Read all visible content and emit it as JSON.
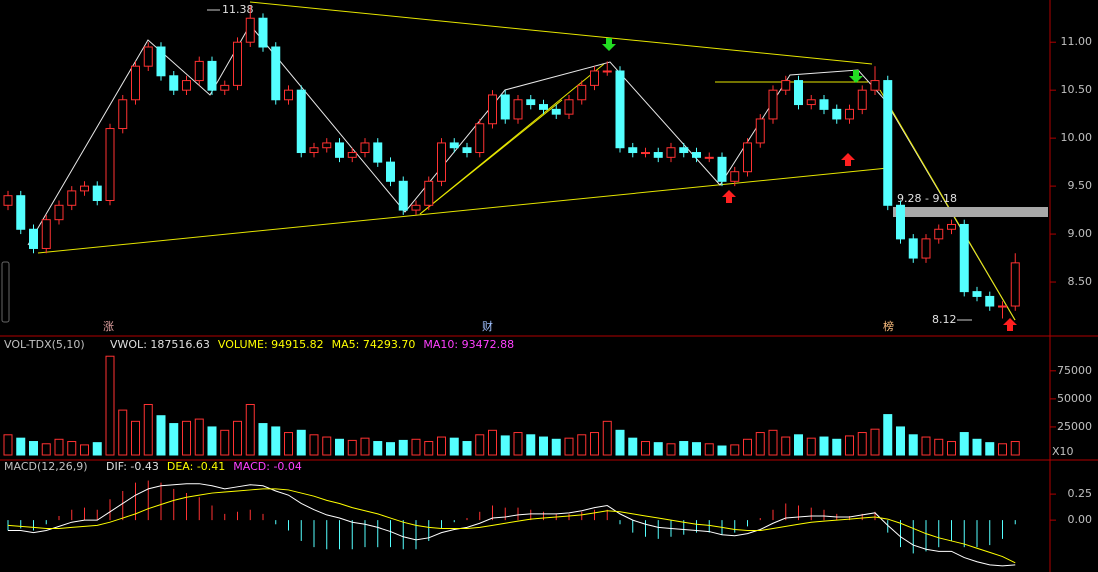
{
  "chart_data": [
    {
      "type": "candlestick",
      "ylim": [
        8.0,
        11.44
      ],
      "yticks": [
        {
          "value": 8.5,
          "label": "8.50"
        },
        {
          "value": 9,
          "label": "9.00"
        },
        {
          "value": 9.5,
          "label": "9.50"
        },
        {
          "value": 10,
          "label": "10.00"
        },
        {
          "value": 10.5,
          "label": "10.50"
        },
        {
          "value": 11,
          "label": "11.00"
        }
      ],
      "up_color": "#ff3232",
      "down_color": "#54ffff",
      "open": [
        9.3,
        9.4,
        9.05,
        8.85,
        9.15,
        9.3,
        9.45,
        9.5,
        9.35,
        10.1,
        10.4,
        10.75,
        10.95,
        10.65,
        10.5,
        10.6,
        10.8,
        10.5,
        10.55,
        11.0,
        11.25,
        10.95,
        10.4,
        10.5,
        9.85,
        9.9,
        9.95,
        9.8,
        9.85,
        9.95,
        9.75,
        9.55,
        9.25,
        9.3,
        9.55,
        9.95,
        9.9,
        9.85,
        10.15,
        10.45,
        10.2,
        10.4,
        10.35,
        10.3,
        10.25,
        10.4,
        10.55,
        10.7,
        10.7,
        9.9,
        9.85,
        9.85,
        9.8,
        9.9,
        9.85,
        9.8,
        9.8,
        9.55,
        9.65,
        9.95,
        10.2,
        10.5,
        10.6,
        10.35,
        10.4,
        10.3,
        10.2,
        10.3,
        10.5,
        10.6,
        9.3,
        8.95,
        8.75,
        8.95,
        9.05,
        9.1,
        8.4,
        8.35,
        8.25,
        8.25
      ],
      "high": [
        9.45,
        9.45,
        9.1,
        9.2,
        9.35,
        9.5,
        9.55,
        9.55,
        10.15,
        10.45,
        10.8,
        11.0,
        11.0,
        10.7,
        10.65,
        10.85,
        10.85,
        10.6,
        11.05,
        11.38,
        11.3,
        11.0,
        10.55,
        10.55,
        9.95,
        10.0,
        10.0,
        9.9,
        10.0,
        10.0,
        9.8,
        9.6,
        9.35,
        9.6,
        10.0,
        10.0,
        9.95,
        10.2,
        10.5,
        10.5,
        10.45,
        10.45,
        10.4,
        10.35,
        10.45,
        10.6,
        10.75,
        10.8,
        10.75,
        9.95,
        9.9,
        9.9,
        9.95,
        9.95,
        9.9,
        9.85,
        9.85,
        9.7,
        10.0,
        10.25,
        10.55,
        10.65,
        10.65,
        10.45,
        10.45,
        10.35,
        10.35,
        10.55,
        10.75,
        10.65,
        9.35,
        9.0,
        9.0,
        9.1,
        9.15,
        9.15,
        8.45,
        8.4,
        8.3,
        8.8
      ],
      "low": [
        9.25,
        9.0,
        8.8,
        8.8,
        9.1,
        9.25,
        9.4,
        9.3,
        9.3,
        10.05,
        10.35,
        10.7,
        10.6,
        10.45,
        10.45,
        10.55,
        10.45,
        10.45,
        10.5,
        10.95,
        10.9,
        10.35,
        10.35,
        9.8,
        9.8,
        9.85,
        9.75,
        9.75,
        9.8,
        9.7,
        9.5,
        9.2,
        9.2,
        9.25,
        9.5,
        9.85,
        9.8,
        9.8,
        10.1,
        10.15,
        10.15,
        10.3,
        10.25,
        10.2,
        10.2,
        10.35,
        10.5,
        10.65,
        9.85,
        9.8,
        9.8,
        9.75,
        9.75,
        9.8,
        9.75,
        9.75,
        9.5,
        9.5,
        9.6,
        9.9,
        10.15,
        10.45,
        10.3,
        10.3,
        10.25,
        10.15,
        10.15,
        10.25,
        10.45,
        9.25,
        8.9,
        8.7,
        8.7,
        8.9,
        9.0,
        8.35,
        8.3,
        8.2,
        8.12,
        8.2
      ],
      "close": [
        9.4,
        9.05,
        8.85,
        9.15,
        9.3,
        9.45,
        9.5,
        9.35,
        10.1,
        10.4,
        10.75,
        10.95,
        10.65,
        10.5,
        10.6,
        10.8,
        10.5,
        10.55,
        11.0,
        11.25,
        10.95,
        10.4,
        10.5,
        9.85,
        9.9,
        9.95,
        9.8,
        9.85,
        9.95,
        9.75,
        9.55,
        9.25,
        9.3,
        9.55,
        9.95,
        9.9,
        9.85,
        10.15,
        10.45,
        10.2,
        10.4,
        10.35,
        10.3,
        10.25,
        10.4,
        10.55,
        10.7,
        10.7,
        9.9,
        9.85,
        9.85,
        9.8,
        9.9,
        9.85,
        9.8,
        9.8,
        9.55,
        9.65,
        9.95,
        10.2,
        10.5,
        10.6,
        10.35,
        10.4,
        10.3,
        10.2,
        10.3,
        10.5,
        10.6,
        9.3,
        8.95,
        8.75,
        8.95,
        9.05,
        9.1,
        8.4,
        8.35,
        8.25,
        8.25,
        8.7
      ],
      "annotations": [
        "11.38",
        "9.28 - 9.18",
        "8.12"
      ],
      "markers": [
        "涨",
        "财",
        "榜"
      ]
    },
    {
      "type": "bar",
      "title": "VOL-TDX(5,10)",
      "legend": [
        {
          "label": "VWOL: 187516.63",
          "color": "#e0e0e0"
        },
        {
          "label": "VOLUME: 94915.82",
          "color": "#ffff00"
        },
        {
          "label": "MA5: 74293.70",
          "color": "#ffff00"
        },
        {
          "label": "MA10: 93472.88",
          "color": "#ff40ff"
        }
      ],
      "values": [
        18000,
        15000,
        12000,
        10000,
        14000,
        12000,
        9000,
        11000,
        88000,
        40000,
        30000,
        45000,
        35000,
        28000,
        30000,
        32000,
        25000,
        22000,
        30000,
        45000,
        28000,
        25000,
        20000,
        22000,
        18000,
        16000,
        14000,
        13000,
        15000,
        12000,
        11000,
        13000,
        14000,
        12000,
        16000,
        15000,
        12000,
        18000,
        22000,
        17000,
        20000,
        18000,
        16000,
        14000,
        15000,
        18000,
        20000,
        30000,
        22000,
        15000,
        12000,
        11000,
        10000,
        12000,
        11000,
        10000,
        8000,
        9000,
        14000,
        20000,
        22000,
        16000,
        18000,
        15000,
        16000,
        14000,
        17000,
        20000,
        23000,
        36000,
        25000,
        18000,
        16000,
        14000,
        12000,
        20000,
        14000,
        11000,
        10000,
        12000
      ],
      "ylim": [
        0,
        98000
      ],
      "yticks": [
        25000,
        50000,
        75000
      ],
      "scale_label": "X10"
    },
    {
      "type": "macd",
      "title": "MACD(12,26,9)",
      "legend": [
        {
          "label": "DIF: -0.43",
          "color": "#e0e0e0"
        },
        {
          "label": "DEA: -0.41",
          "color": "#ffff00"
        },
        {
          "label": "MACD: -0.04",
          "color": "#ff40ff"
        }
      ],
      "series": [
        {
          "name": "DIF",
          "color": "#ffffff",
          "values": [
            -0.1,
            -0.1,
            -0.12,
            -0.1,
            -0.06,
            -0.02,
            0.0,
            0.0,
            0.08,
            0.16,
            0.24,
            0.3,
            0.33,
            0.34,
            0.35,
            0.35,
            0.33,
            0.3,
            0.32,
            0.34,
            0.33,
            0.28,
            0.24,
            0.16,
            0.1,
            0.05,
            0.02,
            -0.02,
            -0.04,
            -0.07,
            -0.11,
            -0.16,
            -0.19,
            -0.17,
            -0.12,
            -0.09,
            -0.07,
            -0.03,
            0.02,
            0.03,
            0.05,
            0.06,
            0.06,
            0.06,
            0.07,
            0.09,
            0.12,
            0.14,
            0.06,
            0.0,
            -0.04,
            -0.07,
            -0.08,
            -0.09,
            -0.1,
            -0.11,
            -0.14,
            -0.15,
            -0.13,
            -0.09,
            -0.03,
            0.02,
            0.03,
            0.04,
            0.04,
            0.03,
            0.03,
            0.05,
            0.07,
            -0.05,
            -0.16,
            -0.24,
            -0.28,
            -0.3,
            -0.3,
            -0.36,
            -0.4,
            -0.43,
            -0.44,
            -0.43
          ]
        },
        {
          "name": "DEA",
          "color": "#ffff00",
          "values": [
            -0.05,
            -0.06,
            -0.07,
            -0.08,
            -0.08,
            -0.07,
            -0.06,
            -0.05,
            -0.02,
            0.02,
            0.06,
            0.11,
            0.15,
            0.19,
            0.22,
            0.24,
            0.26,
            0.27,
            0.28,
            0.29,
            0.3,
            0.3,
            0.29,
            0.26,
            0.23,
            0.19,
            0.16,
            0.12,
            0.09,
            0.06,
            0.02,
            -0.02,
            -0.05,
            -0.07,
            -0.08,
            -0.08,
            -0.08,
            -0.07,
            -0.05,
            -0.03,
            -0.01,
            0.01,
            0.02,
            0.03,
            0.04,
            0.05,
            0.07,
            0.09,
            0.08,
            0.06,
            0.04,
            0.02,
            0.0,
            -0.02,
            -0.04,
            -0.05,
            -0.07,
            -0.09,
            -0.1,
            -0.1,
            -0.08,
            -0.06,
            -0.04,
            -0.02,
            -0.01,
            0.0,
            0.01,
            0.02,
            0.03,
            0.01,
            -0.03,
            -0.08,
            -0.13,
            -0.17,
            -0.2,
            -0.23,
            -0.27,
            -0.31,
            -0.35,
            -0.41
          ]
        },
        {
          "name": "MACD",
          "values": [
            -0.1,
            -0.08,
            -0.1,
            -0.04,
            0.04,
            0.1,
            0.12,
            0.1,
            0.2,
            0.28,
            0.36,
            0.38,
            0.36,
            0.3,
            0.26,
            0.22,
            0.14,
            0.06,
            0.08,
            0.1,
            0.06,
            -0.04,
            -0.1,
            -0.2,
            -0.26,
            -0.28,
            -0.28,
            -0.28,
            -0.26,
            -0.26,
            -0.26,
            -0.28,
            -0.28,
            -0.2,
            -0.08,
            -0.02,
            0.02,
            0.08,
            0.14,
            0.12,
            0.12,
            0.1,
            0.08,
            0.06,
            0.06,
            0.08,
            0.1,
            0.1,
            -0.04,
            -0.12,
            -0.16,
            -0.18,
            -0.16,
            -0.14,
            -0.12,
            -0.12,
            -0.14,
            -0.12,
            -0.06,
            0.02,
            0.1,
            0.16,
            0.14,
            0.12,
            0.1,
            0.06,
            0.04,
            0.06,
            0.08,
            -0.12,
            -0.26,
            -0.32,
            -0.3,
            -0.26,
            -0.2,
            -0.26,
            -0.26,
            -0.24,
            -0.18,
            -0.04
          ]
        }
      ],
      "ylim": [
        -0.46,
        0.52
      ],
      "yticks": [
        {
          "value": 0,
          "label": "0.00"
        },
        0.25
      ]
    }
  ]
}
